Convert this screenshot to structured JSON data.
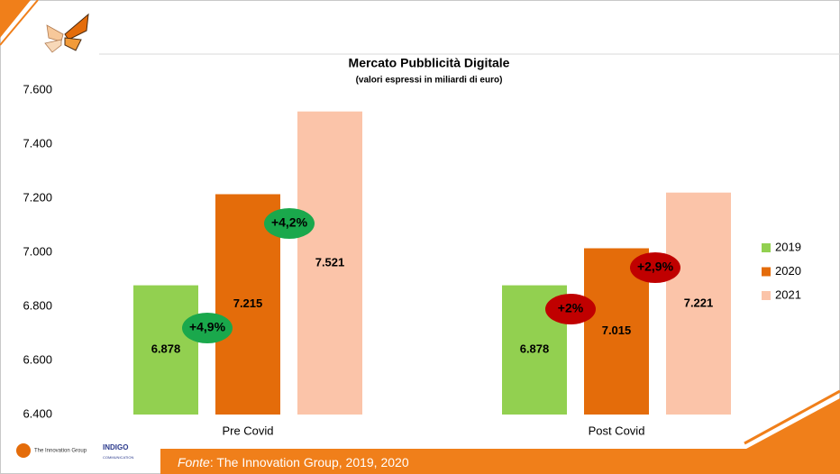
{
  "chart_data": {
    "type": "bar",
    "title": "Mercato Pubblicità Digitale",
    "subtitle": "(valori espressi in miliardi di euro)",
    "categories": [
      "Pre Covid",
      "Post Covid"
    ],
    "series": [
      {
        "name": "2019",
        "color": "#92d050",
        "values": [
          6878,
          6878
        ],
        "value_labels": [
          "6.878",
          "6.878"
        ]
      },
      {
        "name": "2020",
        "color": "#e46c0a",
        "values": [
          7215,
          7015
        ],
        "value_labels": [
          "7.215",
          "7.015"
        ]
      },
      {
        "name": "2021",
        "color": "#fbc4a9",
        "values": [
          7521,
          7221
        ],
        "value_labels": [
          "7.521",
          "7.221"
        ]
      }
    ],
    "ylim": [
      6400,
      7600
    ],
    "yticks": [
      {
        "value": 6400,
        "label": "6.400"
      },
      {
        "value": 6600,
        "label": "6.600"
      },
      {
        "value": 6800,
        "label": "6.800"
      },
      {
        "value": 7000,
        "label": "7.000"
      },
      {
        "value": 7200,
        "label": "7.200"
      },
      {
        "value": 7400,
        "label": "7.400"
      },
      {
        "value": 7600,
        "label": "7.600"
      }
    ],
    "grid": false,
    "legend": "right",
    "annotations": [
      {
        "text": "+4,9%",
        "color": "#1aa84c"
      },
      {
        "text": "+4,2%",
        "color": "#1aa84c"
      },
      {
        "text": "+2%",
        "color": "#c00000"
      },
      {
        "text": "+2,9%",
        "color": "#c00000"
      }
    ]
  },
  "footer": {
    "source_label": "Fonte",
    "source_text": ": The Innovation Group, 2019, 2020",
    "logo_left": "The Innovation Group",
    "logo_right": "INDIGO",
    "logo_right_sub": "COMMUNICATION"
  }
}
